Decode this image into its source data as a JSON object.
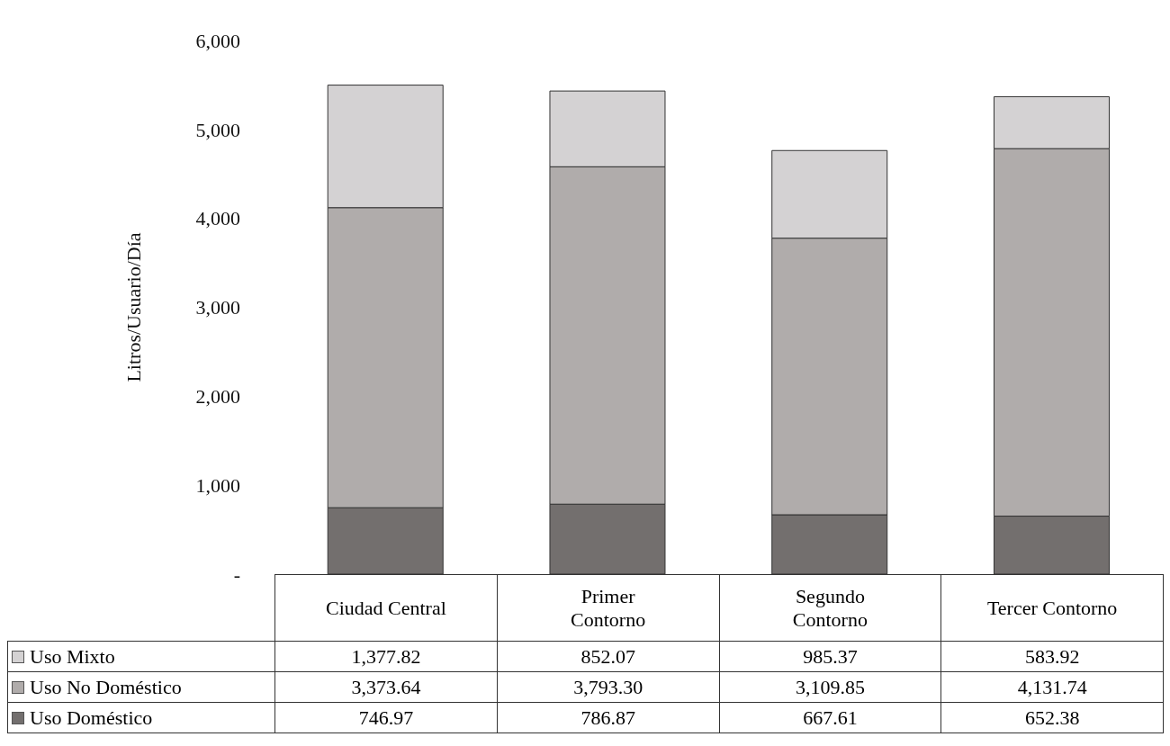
{
  "chart_data": {
    "type": "bar",
    "stacked": true,
    "ylabel": "Litros/Usuario/Día",
    "categories": [
      "Ciudad Central",
      "Primer Contorno",
      "Segundo Contorno",
      "Tercer Contorno"
    ],
    "series": [
      {
        "name": "Uso Doméstico",
        "color": "#736f6e",
        "values": [
          746.97,
          786.87,
          667.61,
          652.38
        ],
        "value_labels": [
          "746.97",
          "786.87",
          "667.61",
          "652.38"
        ]
      },
      {
        "name": "Uso No Doméstico",
        "color": "#b0acab",
        "values": [
          3373.64,
          3793.3,
          3109.85,
          4131.74
        ],
        "value_labels": [
          "3,373.64",
          "3,793.30",
          "3,109.85",
          "4,131.74"
        ]
      },
      {
        "name": "Uso Mixto",
        "color": "#d4d2d3",
        "values": [
          1377.82,
          852.07,
          985.37,
          583.92
        ],
        "value_labels": [
          "1,377.82",
          "852.07",
          "985.37",
          "583.92"
        ]
      }
    ],
    "ylim": [
      0,
      6000
    ],
    "yticks": [
      {
        "value": 0,
        "label": "-"
      },
      {
        "value": 1000,
        "label": "1,000"
      },
      {
        "value": 2000,
        "label": "2,000"
      },
      {
        "value": 3000,
        "label": "3,000"
      },
      {
        "value": 4000,
        "label": "4,000"
      },
      {
        "value": 5000,
        "label": "5,000"
      },
      {
        "value": 6000,
        "label": "6,000"
      }
    ],
    "grid": false,
    "legend": "bottom"
  }
}
